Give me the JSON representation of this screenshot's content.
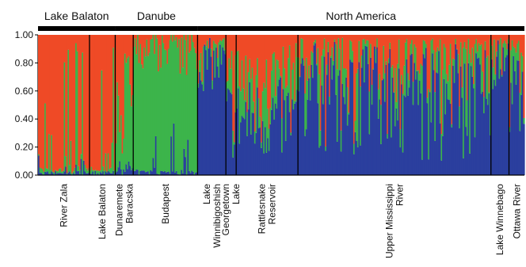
{
  "chart_data": {
    "type": "bar",
    "stacked": true,
    "ylim": [
      0,
      1
    ],
    "yticks": [
      "1.00",
      "0.80",
      "0.60",
      "0.40",
      "0.20",
      "0.00"
    ],
    "colors": {
      "blue": "#2b3f9e",
      "green": "#3cb44b",
      "red": "#ef4a26"
    },
    "regions": [
      {
        "name": "Lake Balaton"
      },
      {
        "name": "Danube"
      },
      {
        "name": "North America"
      }
    ],
    "populations": [
      {
        "name": "River Zala",
        "n": 40,
        "profile": "red"
      },
      {
        "name": "Lake Balaton",
        "n": 20,
        "profile": "red"
      },
      {
        "name": "Dunaremete Baracska",
        "n": 14,
        "profile": "mix_gr"
      },
      {
        "name": "Budapest",
        "n": 50,
        "profile": "green"
      },
      {
        "name": "Lake Winnibigoshish",
        "n": 22,
        "profile": "blue"
      },
      {
        "name": "Georgetown Lake",
        "n": 8,
        "profile": "mixed"
      },
      {
        "name": "Rattlesnake Reservoir",
        "n": 48,
        "profile": "mixed"
      },
      {
        "name": "Upper Mississippi River",
        "n": 150,
        "profile": "blue_mix"
      },
      {
        "name": "Lake Winnebago",
        "n": 14,
        "profile": "blue"
      },
      {
        "name": "Ottawa River",
        "n": 12,
        "profile": "blue_mix"
      }
    ]
  }
}
